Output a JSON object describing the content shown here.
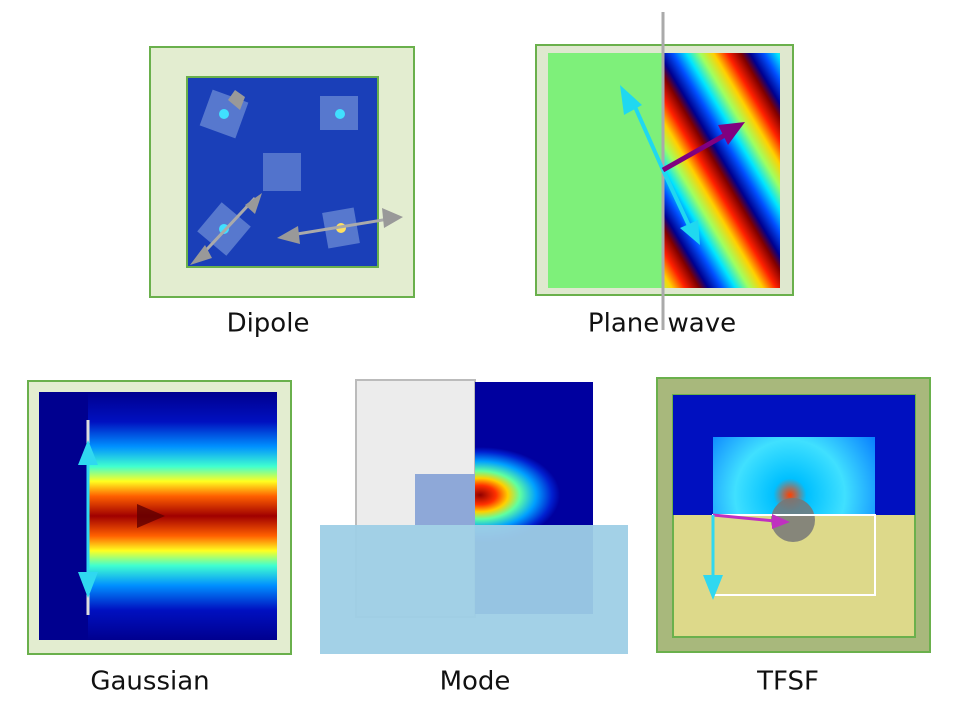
{
  "panels": [
    {
      "label": "Dipole"
    },
    {
      "label": "Plane wave"
    },
    {
      "label": "Gaussian"
    },
    {
      "label": "Mode"
    },
    {
      "label": "TFSF"
    }
  ]
}
